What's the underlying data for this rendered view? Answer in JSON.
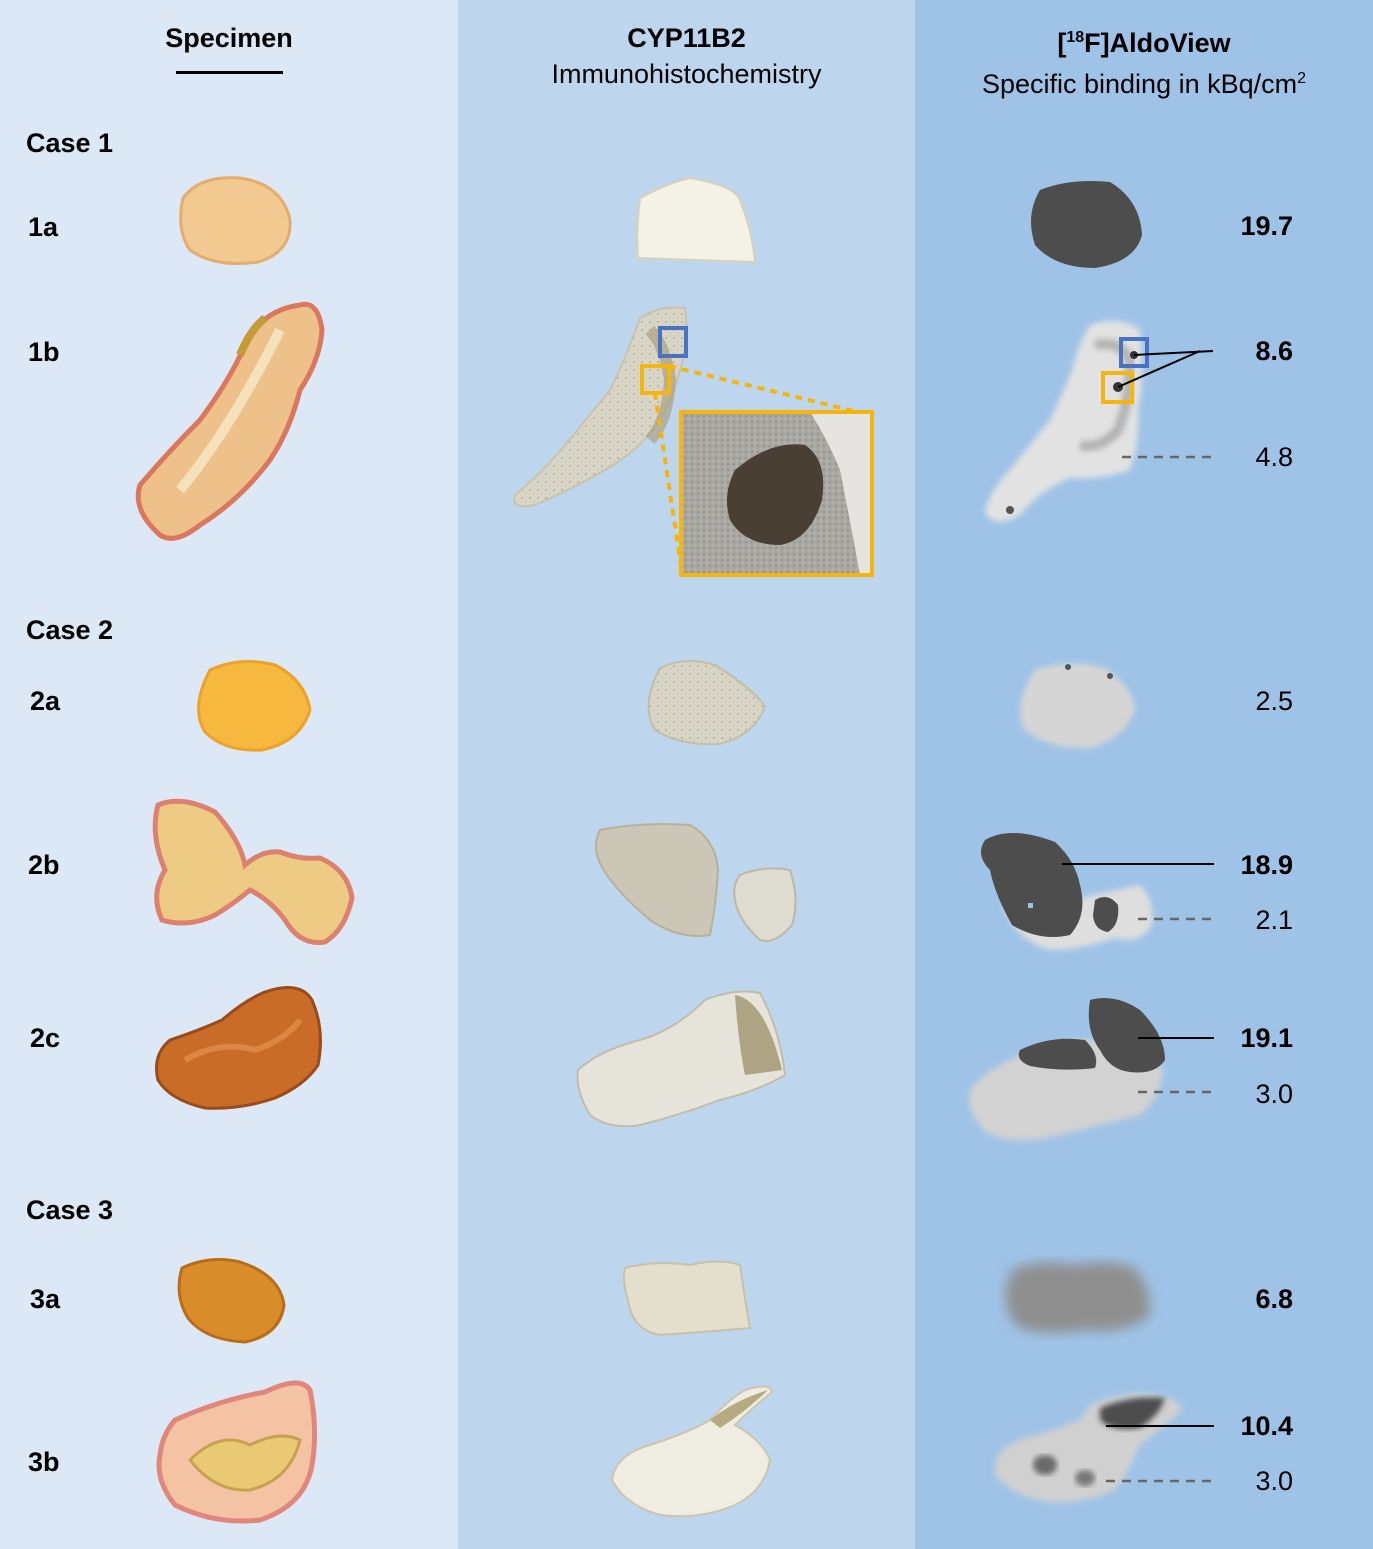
{
  "headers": {
    "specimen": "Specimen",
    "cyp_title": "CYP11B2",
    "cyp_subtitle": "Immunohistochemistry",
    "aldo_bracket_open": "[",
    "aldo_sup": "18",
    "aldo_rest": "F]AldoView",
    "aldo_subtitle": "Specific binding in kBq/cm",
    "aldo_subtitle_sup": "2"
  },
  "cases": [
    {
      "label": "Case 1"
    },
    {
      "label": "Case 2"
    },
    {
      "label": "Case 3"
    }
  ],
  "rows": [
    {
      "id": "1a",
      "label": "1a"
    },
    {
      "id": "1b",
      "label": "1b"
    },
    {
      "id": "2a",
      "label": "2a"
    },
    {
      "id": "2b",
      "label": "2b"
    },
    {
      "id": "2c",
      "label": "2c"
    },
    {
      "id": "3a",
      "label": "3a"
    },
    {
      "id": "3b",
      "label": "3b"
    }
  ],
  "values": [
    {
      "row": "1a",
      "text": "19.7",
      "emphasis": true
    },
    {
      "row": "1b",
      "text": "8.6",
      "emphasis": true
    },
    {
      "row": "1b",
      "text": "4.8",
      "emphasis": false
    },
    {
      "row": "2a",
      "text": "2.5",
      "emphasis": false
    },
    {
      "row": "2b",
      "text": "18.9",
      "emphasis": true
    },
    {
      "row": "2b",
      "text": "2.1",
      "emphasis": false
    },
    {
      "row": "2c",
      "text": "19.1",
      "emphasis": true
    },
    {
      "row": "2c",
      "text": "3.0",
      "emphasis": false
    },
    {
      "row": "3a",
      "text": "6.8",
      "emphasis": true
    },
    {
      "row": "3b",
      "text": "10.4",
      "emphasis": true
    },
    {
      "row": "3b",
      "text": "3.0",
      "emphasis": false
    }
  ],
  "colors": {
    "specimen_bg": "#dce8f5",
    "ihc_bg": "#bdd6ee",
    "autoradiography_bg": "#9fc3e7",
    "roi_blue": "#4a72c4",
    "roi_yellow": "#f5b50f"
  }
}
